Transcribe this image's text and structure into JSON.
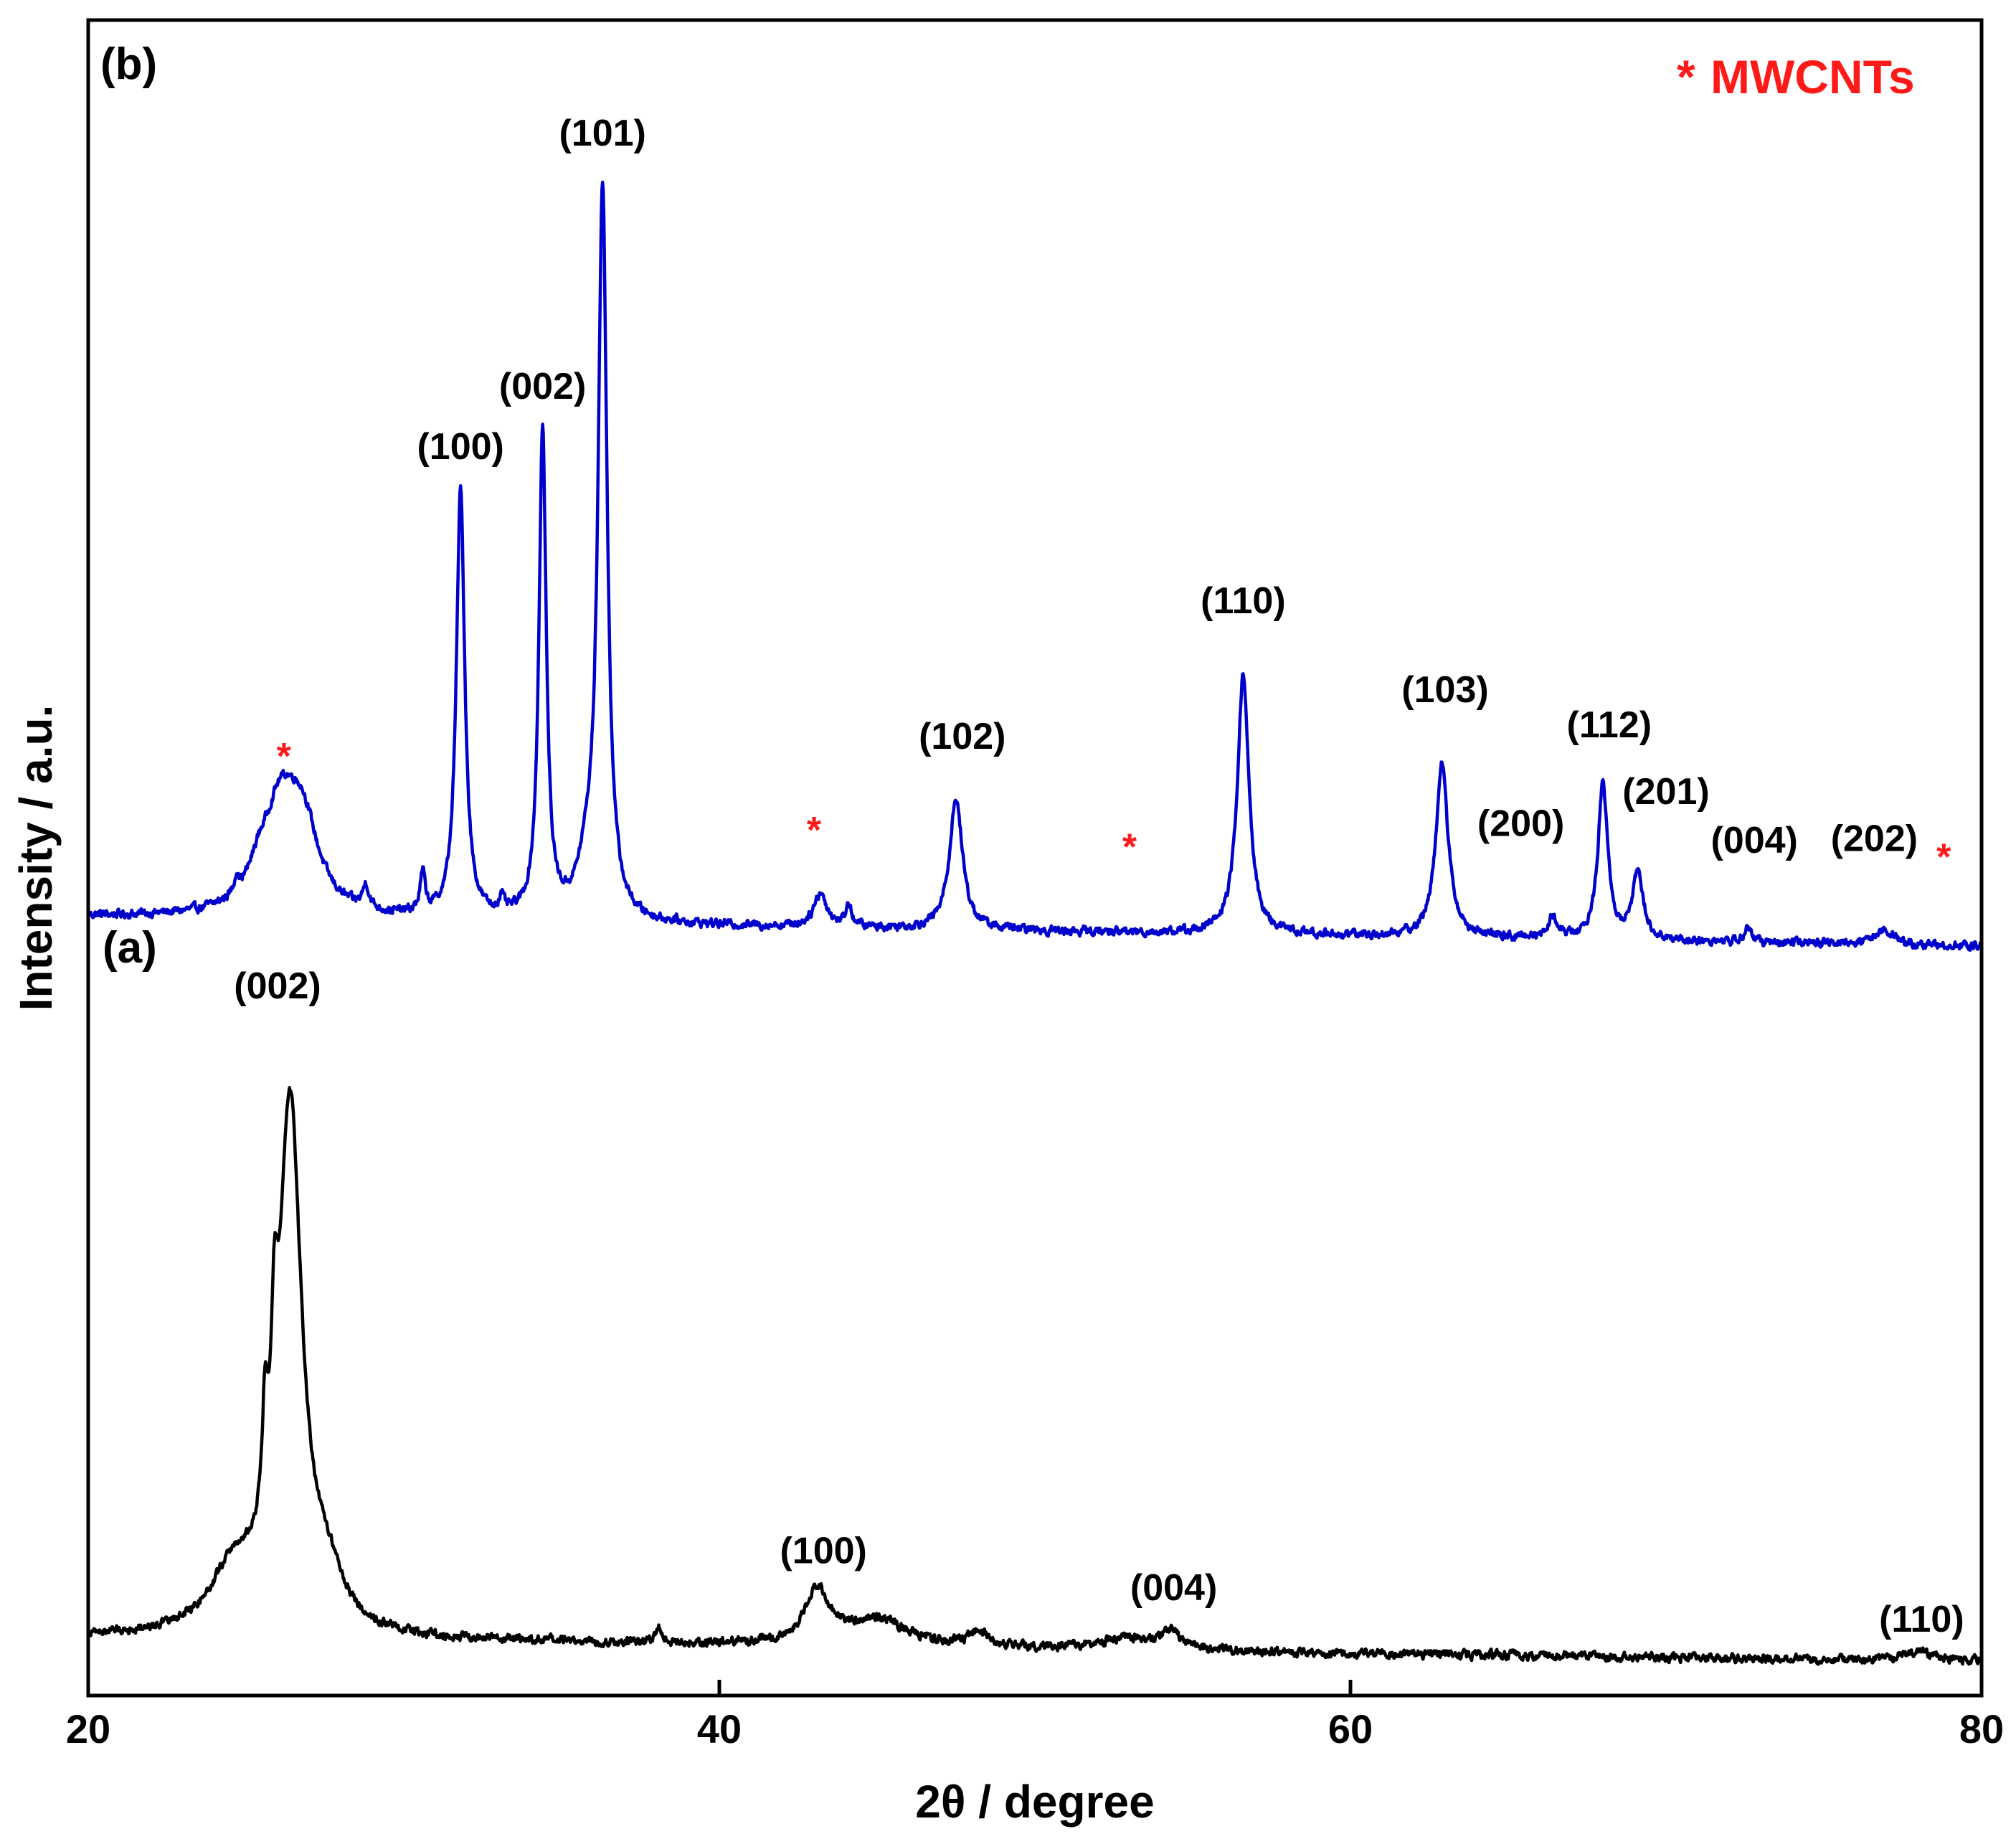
{
  "chart_data": {
    "type": "line",
    "title": "",
    "xlabel": "2θ / degree",
    "ylabel": "Intensity / a.u.",
    "xlim": [
      20,
      80
    ],
    "ylim": [
      0,
      100
    ],
    "x_ticks": [
      {
        "value": 20,
        "label": "20"
      },
      {
        "value": 40,
        "label": "40"
      },
      {
        "value": 60,
        "label": "60"
      },
      {
        "value": 80,
        "label": "80"
      }
    ],
    "legend": {
      "marker": "*",
      "text": "MWCNTs",
      "placement": "top-right",
      "color": "#ff1a1a"
    },
    "series": [
      {
        "name": "(b)",
        "panel_label": "(b)",
        "color": "#0000cc",
        "baseline": 46.5,
        "baseline_slope": -0.03,
        "peaks": [
          {
            "x": 24.7,
            "height": 1.0,
            "width": 0.08
          },
          {
            "x": 25.4,
            "height": 1.2,
            "width": 0.35
          },
          {
            "x": 26.1,
            "height": 6.3,
            "width": 0.7
          },
          {
            "x": 26.8,
            "height": 4.5,
            "width": 0.6
          },
          {
            "x": 28.8,
            "height": 1.4,
            "width": 0.12
          },
          {
            "x": 30.6,
            "height": 2.3,
            "width": 0.1
          },
          {
            "x": 31.8,
            "height": 25.5,
            "width": 0.16
          },
          {
            "x": 33.1,
            "height": 0.8,
            "width": 0.1
          },
          {
            "x": 34.4,
            "height": 29.0,
            "width": 0.14
          },
          {
            "x": 35.8,
            "height": 2.5,
            "width": 0.35
          },
          {
            "x": 36.3,
            "height": 43.5,
            "width": 0.17
          },
          {
            "x": 43.2,
            "height": 2.0,
            "width": 0.25
          },
          {
            "x": 44.1,
            "height": 1.3,
            "width": 0.12
          },
          {
            "x": 47.5,
            "height": 7.8,
            "width": 0.25
          },
          {
            "x": 56.6,
            "height": 15.5,
            "width": 0.22
          },
          {
            "x": 62.9,
            "height": 10.5,
            "width": 0.23
          },
          {
            "x": 66.4,
            "height": 1.3,
            "width": 0.18
          },
          {
            "x": 68.0,
            "height": 9.5,
            "width": 0.18
          },
          {
            "x": 69.1,
            "height": 3.8,
            "width": 0.22
          },
          {
            "x": 72.6,
            "height": 1.0,
            "width": 0.12
          },
          {
            "x": 76.9,
            "height": 0.9,
            "width": 0.4
          }
        ],
        "peak_labels": [
          {
            "text": "(100)",
            "x": 31.8,
            "y": 73.8
          },
          {
            "text": "(002)",
            "x": 34.4,
            "y": 77.4
          },
          {
            "text": "(101)",
            "x": 36.3,
            "y": 92.5
          },
          {
            "text": "(102)",
            "x": 47.7,
            "y": 56.5
          },
          {
            "text": "(110)",
            "x": 56.6,
            "y": 64.6
          },
          {
            "text": "(103)",
            "x": 63.0,
            "y": 59.3
          },
          {
            "text": "(200)",
            "x": 65.4,
            "y": 51.3
          },
          {
            "text": "(112)",
            "x": 68.2,
            "y": 57.2
          },
          {
            "text": "(201)",
            "x": 70.0,
            "y": 53.2
          },
          {
            "text": "(004)",
            "x": 72.8,
            "y": 50.3
          },
          {
            "text": "(202)",
            "x": 76.6,
            "y": 50.4
          }
        ],
        "mwcnt_markers": [
          {
            "x": 26.2,
            "y": 55.3
          },
          {
            "x": 43.0,
            "y": 50.9
          },
          {
            "x": 53.0,
            "y": 49.9
          },
          {
            "x": 78.8,
            "y": 49.3
          }
        ]
      },
      {
        "name": "(a)",
        "panel_label": "(a)",
        "color": "#000000",
        "baseline": 3.5,
        "baseline_slope": -0.025,
        "peaks": [
          {
            "x": 26.4,
            "height": 31.0,
            "width": 0.45
          },
          {
            "x": 25.6,
            "height": 6.0,
            "width": 0.1
          },
          {
            "x": 25.9,
            "height": 8.0,
            "width": 0.12
          },
          {
            "x": 24.6,
            "height": 3.5,
            "width": 0.9
          },
          {
            "x": 27.6,
            "height": 2.5,
            "width": 0.6
          },
          {
            "x": 38.1,
            "height": 0.9,
            "width": 0.12
          },
          {
            "x": 43.1,
            "height": 3.2,
            "width": 0.45
          },
          {
            "x": 45.0,
            "height": 1.6,
            "width": 1.2
          },
          {
            "x": 48.2,
            "height": 0.9,
            "width": 0.3
          },
          {
            "x": 53.0,
            "height": 0.7,
            "width": 1.2
          },
          {
            "x": 54.3,
            "height": 1.0,
            "width": 0.3
          },
          {
            "x": 78.0,
            "height": 0.5,
            "width": 0.8
          }
        ],
        "peak_labels": [
          {
            "text": "(002)",
            "x": 26.0,
            "y": 41.6
          },
          {
            "text": "(100)",
            "x": 43.3,
            "y": 7.9
          },
          {
            "text": "(004)",
            "x": 54.4,
            "y": 5.7
          },
          {
            "text": "(110)",
            "x": 78.1,
            "y": 3.8
          }
        ]
      }
    ]
  }
}
